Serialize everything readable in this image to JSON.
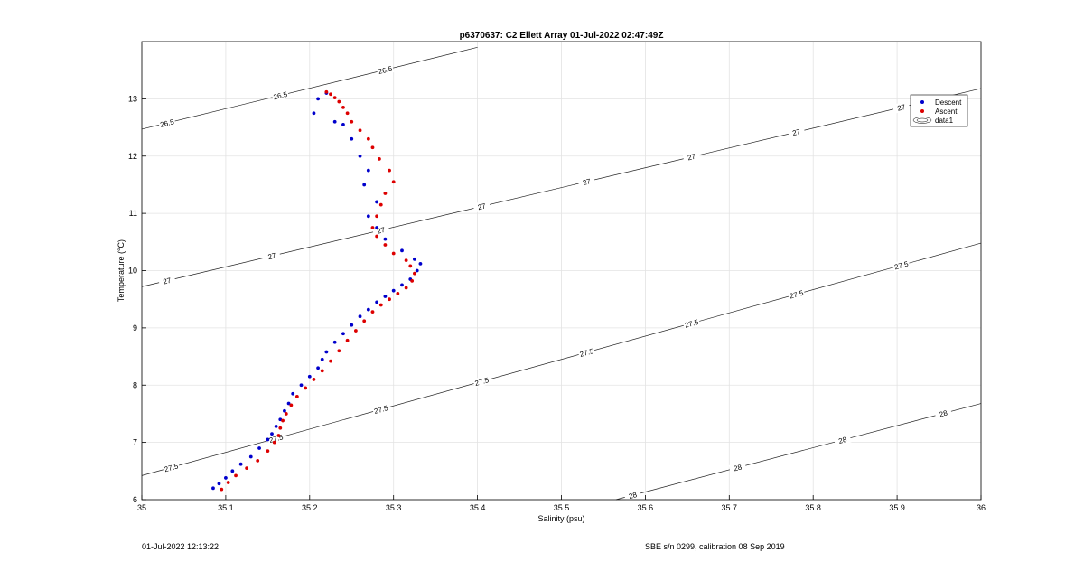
{
  "chart_data": {
    "type": "scatter",
    "title": "p6370637: C2 Ellett Array 01-Jul-2022 02:47:49Z",
    "xlabel": "Salinity (psu)",
    "ylabel": "Temperature (°C)",
    "xlim": [
      35,
      36
    ],
    "ylim": [
      6,
      14
    ],
    "grid": true,
    "legend_position": "top-right",
    "x_ticks": [
      "35",
      "35.1",
      "35.2",
      "35.3",
      "35.4",
      "35.5",
      "35.6",
      "35.7",
      "35.8",
      "35.9",
      "36"
    ],
    "y_ticks": [
      "6",
      "7",
      "8",
      "9",
      "10",
      "11",
      "12",
      "13"
    ],
    "legend": [
      {
        "label": "Descent",
        "color": "#0000cc"
      },
      {
        "label": "Ascent",
        "color": "#dd0000"
      },
      {
        "label": "data1",
        "color": "#000000"
      }
    ],
    "contours": [
      {
        "label": "26.5",
        "points": [
          [
            35.0,
            12.47
          ],
          [
            35.4,
            13.9
          ]
        ],
        "label_x": [
          35.03,
          35.165,
          35.29
        ]
      },
      {
        "label": "27",
        "points": [
          [
            35.0,
            9.72
          ],
          [
            36.0,
            13.18
          ]
        ],
        "label_x": [
          35.03,
          35.155,
          35.285,
          35.405,
          35.53,
          35.655,
          35.78,
          35.905
        ]
      },
      {
        "label": "27.5",
        "points": [
          [
            35.0,
            6.42
          ],
          [
            36.0,
            10.48
          ]
        ],
        "label_x": [
          35.035,
          35.16,
          35.285,
          35.405,
          35.53,
          35.655,
          35.78,
          35.905
        ]
      },
      {
        "label": "28",
        "points": [
          [
            35.565,
            6.0
          ],
          [
            36.0,
            7.68
          ]
        ],
        "label_x": [
          35.585,
          35.71,
          35.835,
          35.955
        ]
      }
    ],
    "series": [
      {
        "name": "Descent",
        "color": "#0000cc",
        "x": [
          35.085,
          35.092,
          35.1,
          35.108,
          35.118,
          35.13,
          35.14,
          35.15,
          35.155,
          35.16,
          35.165,
          35.17,
          35.175,
          35.18,
          35.19,
          35.2,
          35.21,
          35.215,
          35.22,
          35.23,
          35.24,
          35.25,
          35.26,
          35.27,
          35.28,
          35.29,
          35.3,
          35.31,
          35.32,
          35.328,
          35.332,
          35.325,
          35.31,
          35.29,
          35.28,
          35.27,
          35.28,
          35.265,
          35.27,
          35.26,
          35.25,
          35.24,
          35.23,
          35.22,
          35.205,
          35.21
        ],
        "y": [
          6.2,
          6.28,
          6.38,
          6.5,
          6.62,
          6.75,
          6.9,
          7.05,
          7.15,
          7.28,
          7.4,
          7.55,
          7.68,
          7.85,
          8.0,
          8.15,
          8.3,
          8.45,
          8.58,
          8.75,
          8.9,
          9.05,
          9.2,
          9.32,
          9.45,
          9.55,
          9.65,
          9.75,
          9.85,
          10.0,
          10.12,
          10.2,
          10.35,
          10.55,
          10.75,
          10.95,
          11.2,
          11.5,
          11.75,
          12.0,
          12.3,
          12.55,
          12.6,
          13.1,
          12.75,
          13.0
        ]
      },
      {
        "name": "Ascent",
        "color": "#dd0000",
        "x": [
          35.095,
          35.103,
          35.112,
          35.125,
          35.138,
          35.15,
          35.158,
          35.163,
          35.165,
          35.168,
          35.172,
          35.178,
          35.185,
          35.195,
          35.205,
          35.215,
          35.225,
          35.235,
          35.245,
          35.255,
          35.265,
          35.275,
          35.285,
          35.295,
          35.305,
          35.315,
          35.322,
          35.325,
          35.32,
          35.315,
          35.3,
          35.29,
          35.28,
          35.275,
          35.28,
          35.285,
          35.29,
          35.3,
          35.295,
          35.283,
          35.275,
          35.27,
          35.26,
          35.25,
          35.245,
          35.24,
          35.235,
          35.23,
          35.225,
          35.22
        ],
        "y": [
          6.18,
          6.3,
          6.42,
          6.55,
          6.68,
          6.85,
          7.0,
          7.12,
          7.25,
          7.38,
          7.5,
          7.65,
          7.8,
          7.95,
          8.1,
          8.25,
          8.42,
          8.6,
          8.78,
          8.95,
          9.12,
          9.28,
          9.4,
          9.5,
          9.6,
          9.7,
          9.82,
          9.95,
          10.08,
          10.18,
          10.3,
          10.45,
          10.6,
          10.75,
          10.95,
          11.15,
          11.35,
          11.55,
          11.75,
          11.95,
          12.15,
          12.3,
          12.45,
          12.6,
          12.75,
          12.85,
          12.95,
          13.02,
          13.08,
          13.12
        ]
      }
    ]
  },
  "footer": {
    "left": "01-Jul-2022 12:13:22",
    "right": "SBE s/n 0299, calibration 08 Sep 2019"
  }
}
